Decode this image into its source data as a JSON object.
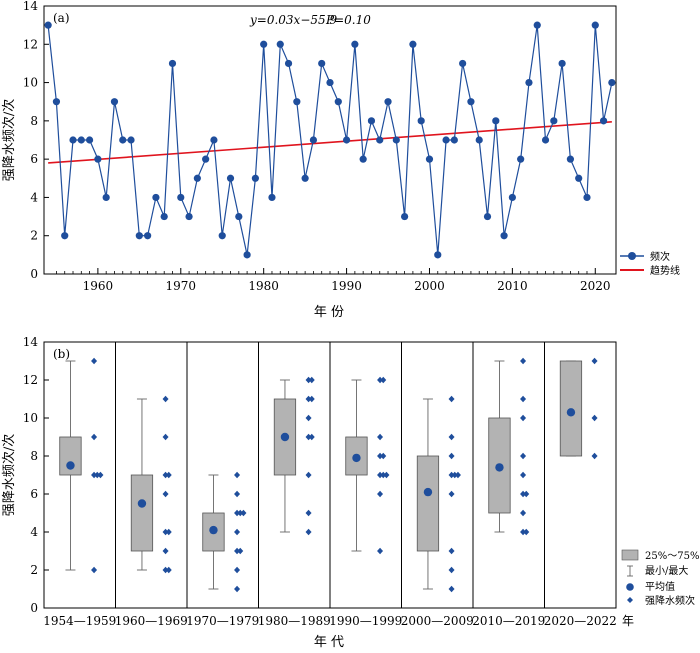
{
  "chart_data": [
    {
      "type": "line",
      "panel_label": "(a)",
      "annotation": {
        "equation": "y=0.03x−55.9",
        "p_value": "P=0.10"
      },
      "xlabel": "年 份",
      "ylabel": "强降水频次/次",
      "xlim": [
        1953.5,
        2022.5
      ],
      "ylim": [
        0,
        14
      ],
      "x_ticks": [
        "1960",
        "1970",
        "1980",
        "1990",
        "2000",
        "2010",
        "2020"
      ],
      "y_ticks": [
        "0",
        "2",
        "4",
        "6",
        "8",
        "10",
        "12",
        "14"
      ],
      "grid": false,
      "legend_position": "right",
      "series": [
        {
          "name": "频次",
          "color": "#1f4e9c",
          "marker": "circle",
          "x": [
            1954,
            1955,
            1956,
            1957,
            1958,
            1959,
            1960,
            1961,
            1962,
            1963,
            1964,
            1965,
            1966,
            1967,
            1968,
            1969,
            1970,
            1971,
            1972,
            1973,
            1974,
            1975,
            1976,
            1977,
            1978,
            1979,
            1980,
            1981,
            1982,
            1983,
            1984,
            1985,
            1986,
            1987,
            1988,
            1989,
            1990,
            1991,
            1992,
            1993,
            1994,
            1995,
            1996,
            1997,
            1998,
            1999,
            2000,
            2001,
            2002,
            2003,
            2004,
            2005,
            2006,
            2007,
            2008,
            2009,
            2010,
            2011,
            2012,
            2013,
            2014,
            2015,
            2016,
            2017,
            2018,
            2019,
            2020,
            2021,
            2022
          ],
          "y": [
            13,
            9,
            2,
            7,
            7,
            7,
            6,
            4,
            9,
            7,
            7,
            2,
            2,
            4,
            3,
            11,
            4,
            3,
            5,
            6,
            7,
            2,
            5,
            3,
            1,
            5,
            12,
            4,
            12,
            11,
            9,
            5,
            7,
            11,
            10,
            9,
            7,
            12,
            6,
            8,
            7,
            9,
            7,
            3,
            12,
            8,
            6,
            1,
            7,
            7,
            11,
            9,
            7,
            3,
            8,
            2,
            4,
            6,
            10,
            13,
            7,
            8,
            11,
            6,
            5,
            4,
            13,
            8,
            10
          ]
        },
        {
          "name": "趋势线",
          "color": "#e0141e",
          "x": [
            1954,
            2022
          ],
          "y": [
            5.8,
            7.95
          ]
        }
      ]
    },
    {
      "type": "box",
      "panel_label": "(b)",
      "xlabel": "年 代",
      "x_suffix": "年",
      "ylabel": "强降水频次/次",
      "ylim": [
        0,
        14
      ],
      "y_ticks": [
        "0",
        "2",
        "4",
        "6",
        "8",
        "10",
        "12",
        "14"
      ],
      "box_color": "#b3b3b3",
      "point_color": "#1f4e9c",
      "legend_position": "right",
      "legend": [
        "25%～75%",
        "最小/最大",
        "平均值",
        "强降水频次"
      ],
      "groups": [
        {
          "label": "1954—1959",
          "min": 2,
          "q1": 7,
          "q3": 9,
          "max": 13,
          "mean": 7.5,
          "points": [
            13,
            9,
            2,
            7,
            7,
            7
          ]
        },
        {
          "label": "1960—1969",
          "min": 2,
          "q1": 3,
          "q3": 7,
          "max": 11,
          "mean": 5.5,
          "points": [
            6,
            4,
            9,
            7,
            7,
            2,
            2,
            4,
            3,
            11
          ]
        },
        {
          "label": "1970—1979",
          "min": 1,
          "q1": 3,
          "q3": 5,
          "max": 7,
          "mean": 4.1,
          "points": [
            4,
            3,
            5,
            6,
            7,
            2,
            5,
            3,
            1,
            5
          ]
        },
        {
          "label": "1980—1989",
          "min": 4,
          "q1": 7,
          "q3": 11,
          "max": 12,
          "mean": 9.0,
          "points": [
            12,
            4,
            12,
            11,
            9,
            5,
            7,
            11,
            10,
            9
          ]
        },
        {
          "label": "1990—1999",
          "min": 3,
          "q1": 7,
          "q3": 9,
          "max": 12,
          "mean": 7.9,
          "points": [
            7,
            12,
            6,
            8,
            7,
            9,
            7,
            3,
            12,
            8
          ]
        },
        {
          "label": "2000—2009",
          "min": 1,
          "q1": 3,
          "q3": 8,
          "max": 11,
          "mean": 6.1,
          "points": [
            6,
            1,
            7,
            7,
            11,
            9,
            7,
            3,
            8,
            2
          ]
        },
        {
          "label": "2010—2019",
          "min": 4,
          "q1": 5,
          "q3": 10,
          "max": 13,
          "mean": 7.4,
          "points": [
            4,
            6,
            10,
            13,
            7,
            8,
            11,
            6,
            5,
            4
          ]
        },
        {
          "label": "2020—2022",
          "min": 8,
          "q1": 8,
          "q3": 13,
          "max": 13,
          "mean": 10.3,
          "points": [
            13,
            8,
            10
          ]
        }
      ]
    }
  ]
}
